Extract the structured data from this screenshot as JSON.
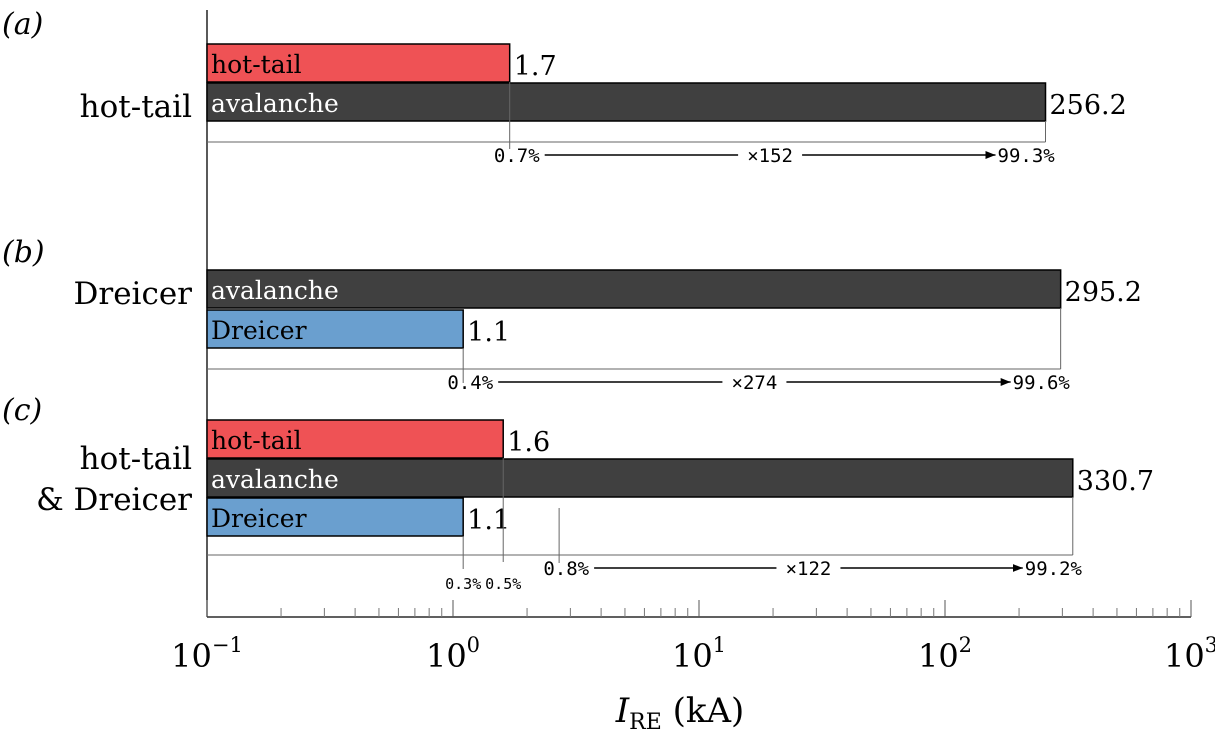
{
  "chart_data": {
    "type": "bar",
    "orientation": "horizontal",
    "x_scale": "log",
    "xlim": [
      0.1,
      1000
    ],
    "xlabel": {
      "main": "I",
      "sub": "RE",
      "unit": " (kA)"
    },
    "x_ticks": [
      {
        "value": 0.1,
        "base": "10",
        "exp": "−1"
      },
      {
        "value": 1,
        "base": "10",
        "exp": "0"
      },
      {
        "value": 10,
        "base": "10",
        "exp": "1"
      },
      {
        "value": 100,
        "base": "10",
        "exp": "2"
      },
      {
        "value": 1000,
        "base": "10",
        "exp": "3"
      }
    ],
    "panels": [
      {
        "letter": "(a)",
        "group_label": [
          "hot-tail"
        ],
        "bars": [
          {
            "name": "hot-tail",
            "value": 1.7,
            "value_label": "1.7",
            "color": "#ef5255",
            "text_color": "#000000"
          },
          {
            "name": "avalanche",
            "value": 256.2,
            "value_label": "256.2",
            "color": "#404040",
            "text_color": "#ffffff"
          }
        ],
        "annotations": [
          {
            "text": "0.7%",
            "at": 1.7,
            "small": false
          },
          {
            "text": "×152",
            "at": null,
            "small": false
          },
          {
            "text": "99.3%",
            "at": 256.2,
            "small": false
          }
        ]
      },
      {
        "letter": "(b)",
        "group_label": [
          "Dreicer"
        ],
        "bars": [
          {
            "name": "avalanche",
            "value": 295.2,
            "value_label": "295.2",
            "color": "#404040",
            "text_color": "#ffffff"
          },
          {
            "name": "Dreicer",
            "value": 1.1,
            "value_label": "1.1",
            "color": "#6a9fcf",
            "text_color": "#000000"
          }
        ],
        "annotations": [
          {
            "text": "0.4%",
            "at": 1.1,
            "small": false
          },
          {
            "text": "×274",
            "at": null,
            "small": false
          },
          {
            "text": "99.6%",
            "at": 295.2,
            "small": false
          }
        ]
      },
      {
        "letter": "(c)",
        "group_label": [
          "hot-tail",
          "& Dreicer"
        ],
        "bars": [
          {
            "name": "hot-tail",
            "value": 1.6,
            "value_label": "1.6",
            "color": "#ef5255",
            "text_color": "#000000"
          },
          {
            "name": "avalanche",
            "value": 330.7,
            "value_label": "330.7",
            "color": "#404040",
            "text_color": "#ffffff"
          },
          {
            "name": "Dreicer",
            "value": 1.1,
            "value_label": "1.1",
            "color": "#6a9fcf",
            "text_color": "#000000"
          }
        ],
        "annotations": [
          {
            "text": "0.3%",
            "at": 1.1,
            "small": true
          },
          {
            "text": "0.5%",
            "at": 1.6,
            "small": true
          },
          {
            "text": "0.8%",
            "at": 2.7,
            "small": false
          },
          {
            "text": "×122",
            "at": null,
            "small": false
          },
          {
            "text": "99.2%",
            "at": 330.7,
            "small": false
          }
        ]
      }
    ]
  }
}
